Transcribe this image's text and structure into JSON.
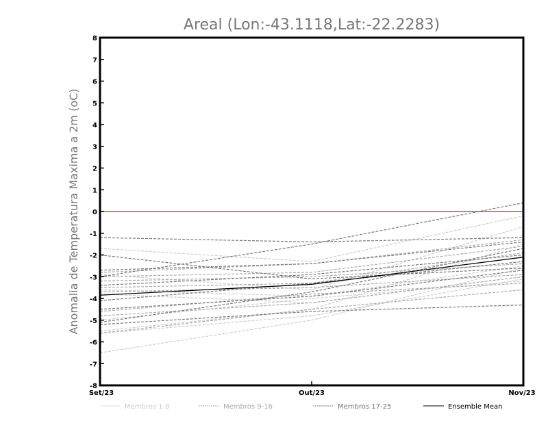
{
  "chart_data": {
    "type": "line",
    "title": "Areal (Lon:-43.1118,Lat:-22.2283)",
    "xlabel": "",
    "ylabel": "Anomalia de Temperatura Maxima a 2m (oC)",
    "x": [
      "Set/23",
      "Out/23",
      "Nov/23"
    ],
    "ylim": [
      -8,
      8
    ],
    "yticks": [
      -8,
      -7,
      -6,
      -5,
      -4,
      -3,
      -2,
      -1,
      0,
      1,
      2,
      3,
      4,
      5,
      6,
      7,
      8
    ],
    "reference_line": {
      "value": 0,
      "color": "#ff3333"
    },
    "groups": [
      {
        "name": "Membros 1-8",
        "color": "#cccccc",
        "style": "dashed",
        "series": [
          [
            -1.7,
            -2.3,
            -0.2
          ],
          [
            -2.9,
            -3.6,
            -0.7
          ],
          [
            -3.6,
            -3.9,
            -2.5
          ],
          [
            -3.8,
            -4.2,
            -3.0
          ],
          [
            -5.0,
            -4.0,
            -3.2
          ],
          [
            -5.5,
            -4.5,
            -1.5
          ],
          [
            -5.6,
            -4.8,
            -3.1
          ],
          [
            -6.5,
            -5.0,
            -2.6
          ]
        ]
      },
      {
        "name": "Membros 9-16",
        "color": "#aaaaaa",
        "style": "dashed",
        "series": [
          [
            -2.8,
            -2.4,
            -1.3
          ],
          [
            -3.2,
            -3.0,
            -2.4
          ],
          [
            -3.5,
            -3.3,
            -1.9
          ],
          [
            -3.7,
            -3.5,
            -2.9
          ],
          [
            -4.6,
            -3.8,
            -3.3
          ],
          [
            -4.8,
            -4.2,
            -3.0
          ],
          [
            -5.6,
            -4.5,
            -3.6
          ],
          [
            -3.0,
            -2.8,
            -1.6
          ]
        ]
      },
      {
        "name": "Membros 17-25",
        "color": "#777777",
        "style": "dashed",
        "series": [
          [
            -1.2,
            -1.4,
            -1.2
          ],
          [
            -2.0,
            -3.1,
            -2.6
          ],
          [
            -2.7,
            -2.4,
            -1.4
          ],
          [
            -3.4,
            -2.9,
            -2.0
          ],
          [
            -4.1,
            -3.3,
            -2.3
          ],
          [
            -4.5,
            -3.9,
            -2.7
          ],
          [
            -5.1,
            -3.7,
            -1.7
          ],
          [
            -5.2,
            -4.6,
            -4.3
          ],
          [
            -3.0,
            -1.5,
            0.4
          ]
        ]
      },
      {
        "name": "Ensemble Mean",
        "color": "#000000",
        "style": "solid",
        "series": [
          [
            -3.85,
            -3.35,
            -2.1
          ]
        ]
      }
    ],
    "legend": "bottom"
  }
}
